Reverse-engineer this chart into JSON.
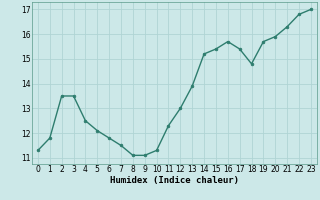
{
  "x": [
    0,
    1,
    2,
    3,
    4,
    5,
    6,
    7,
    8,
    9,
    10,
    11,
    12,
    13,
    14,
    15,
    16,
    17,
    18,
    19,
    20,
    21,
    22,
    23
  ],
  "y": [
    11.3,
    11.8,
    13.5,
    13.5,
    12.5,
    12.1,
    11.8,
    11.5,
    11.1,
    11.1,
    11.3,
    12.3,
    13.0,
    13.9,
    15.2,
    15.4,
    15.7,
    15.4,
    14.8,
    15.7,
    15.9,
    16.3,
    16.8,
    17.0
  ],
  "xlabel": "Humidex (Indice chaleur)",
  "line_color": "#2e7d6e",
  "marker_color": "#2e7d6e",
  "bg_color": "#cce8e8",
  "grid_color": "#b0d4d4",
  "xlim": [
    -0.5,
    23.5
  ],
  "ylim": [
    10.75,
    17.3
  ],
  "yticks": [
    11,
    12,
    13,
    14,
    15,
    16,
    17
  ],
  "xticks": [
    0,
    1,
    2,
    3,
    4,
    5,
    6,
    7,
    8,
    9,
    10,
    11,
    12,
    13,
    14,
    15,
    16,
    17,
    18,
    19,
    20,
    21,
    22,
    23
  ],
  "tick_label_fontsize": 5.5,
  "xlabel_fontsize": 6.5,
  "linewidth": 1.0,
  "markersize": 2.0
}
